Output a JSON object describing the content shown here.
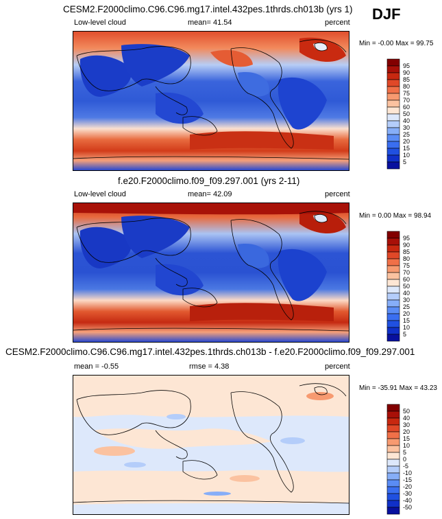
{
  "season": "DJF",
  "panels": [
    {
      "title": "CESM2.F2000climo.C96.C96.mg17.intel.432pes.1thrds.ch013b (yrs 1)",
      "left_label": "Low-level cloud",
      "center_label": "mean=  41.54",
      "right_label": "percent",
      "minmax": "Min =  -0.00 Max =  99.75"
    },
    {
      "title": "f.e20.F2000climo.f09_f09.297.001 (yrs 2-11)",
      "left_label": "Low-level cloud",
      "center_label": "mean=  42.09",
      "right_label": "percent",
      "minmax": "Min =   0.00 Max =  98.94"
    },
    {
      "title": "CESM2.F2000climo.C96.C96.mg17.intel.432pes.1thrds.ch013b - f.e20.F2000climo.f09_f09.297.001",
      "left_label": "mean =  -0.55",
      "center_label": "rmse =   4.38",
      "right_label": "percent",
      "minmax": "Min = -35.91 Max =  43.23"
    }
  ],
  "chart_data": [
    {
      "type": "heatmap",
      "title": "CESM2.F2000climo.C96.C96.mg17.intel.432pes.1thrds.ch013b (yrs 1)",
      "variable": "Low-level cloud",
      "units": "percent",
      "mean": 41.54,
      "min": -0.0,
      "max": 99.75,
      "colorbar_levels": [
        5,
        10,
        15,
        20,
        25,
        30,
        40,
        50,
        60,
        70,
        75,
        80,
        85,
        90,
        95
      ],
      "colorbar_colors": [
        "#08109e",
        "#1030c8",
        "#2050e0",
        "#3a6ef0",
        "#5a8cf5",
        "#86aef8",
        "#b4cdfa",
        "#dde8fb",
        "#fde6d4",
        "#fbc2a0",
        "#f79a70",
        "#f07048",
        "#e04828",
        "#c82810",
        "#a81008",
        "#820000"
      ]
    },
    {
      "type": "heatmap",
      "title": "f.e20.F2000climo.f09_f09.297.001 (yrs 2-11)",
      "variable": "Low-level cloud",
      "units": "percent",
      "mean": 42.09,
      "min": 0.0,
      "max": 98.94,
      "colorbar_levels": [
        5,
        10,
        15,
        20,
        25,
        30,
        40,
        50,
        60,
        70,
        75,
        80,
        85,
        90,
        95
      ],
      "colorbar_colors": [
        "#08109e",
        "#1030c8",
        "#2050e0",
        "#3a6ef0",
        "#5a8cf5",
        "#86aef8",
        "#b4cdfa",
        "#dde8fb",
        "#fde6d4",
        "#fbc2a0",
        "#f79a70",
        "#f07048",
        "#e04828",
        "#c82810",
        "#a81008",
        "#820000"
      ]
    },
    {
      "type": "heatmap",
      "title": "CESM2.F2000climo.C96.C96.mg17.intel.432pes.1thrds.ch013b - f.e20.F2000climo.f09_f09.297.001",
      "units": "percent",
      "mean": -0.55,
      "rmse": 4.38,
      "min": -35.91,
      "max": 43.23,
      "colorbar_levels": [
        -50,
        -40,
        -30,
        -20,
        -15,
        -10,
        -5,
        0,
        5,
        10,
        15,
        20,
        30,
        40,
        50
      ],
      "colorbar_colors": [
        "#08109e",
        "#1030c8",
        "#2050e0",
        "#3a6ef0",
        "#5a8cf5",
        "#86aef8",
        "#b4cdfa",
        "#dde8fb",
        "#fde6d4",
        "#fbc2a0",
        "#f79a70",
        "#f07048",
        "#e04828",
        "#c82810",
        "#a81008",
        "#820000"
      ]
    }
  ]
}
